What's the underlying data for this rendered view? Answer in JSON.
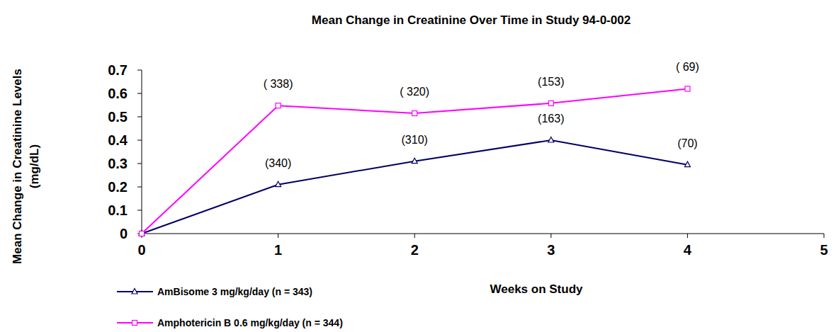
{
  "chart_data": {
    "type": "line",
    "title": "Mean Change in Creatinine Over Time in Study 94-0-002",
    "xlabel": "Weeks on Study",
    "ylabel": [
      "Mean Change in Creatinine Levels",
      "(mg/dL)"
    ],
    "x": [
      0,
      1,
      2,
      3,
      4
    ],
    "xlim": [
      0,
      5
    ],
    "xticks": [
      0,
      1,
      2,
      3,
      4,
      5
    ],
    "ylim": [
      0,
      0.7
    ],
    "yticks": [
      {
        "value": 0,
        "label": "0"
      },
      0.1,
      0.2,
      0.3,
      0.4,
      0.5,
      0.6,
      0.7
    ],
    "grid": false,
    "legend": "bottom-left",
    "series": [
      {
        "name": "AmBisome 3 mg/kg/day (n = 343)",
        "color": "#000066",
        "marker": "triangle",
        "line_style": "solid",
        "values": [
          0,
          0.21,
          0.31,
          0.4,
          0.295
        ],
        "annotations": [
          {
            "x": 1,
            "text": "(340)"
          },
          {
            "x": 2,
            "text": "(310)"
          },
          {
            "x": 3,
            "text": "(163)"
          },
          {
            "x": 4,
            "text": "(70)"
          }
        ]
      },
      {
        "name": "Amphotericin B 0.6 mg/kg/day (n = 344)",
        "color": "#ff00ff",
        "marker": "square",
        "line_style": "solid",
        "values": [
          0,
          0.548,
          0.515,
          0.558,
          0.62
        ],
        "annotations": [
          {
            "x": 1,
            "text": "( 338)"
          },
          {
            "x": 2,
            "text": "( 320)"
          },
          {
            "x": 3,
            "text": "(153)"
          },
          {
            "x": 4,
            "text": "( 69)"
          }
        ]
      }
    ]
  }
}
